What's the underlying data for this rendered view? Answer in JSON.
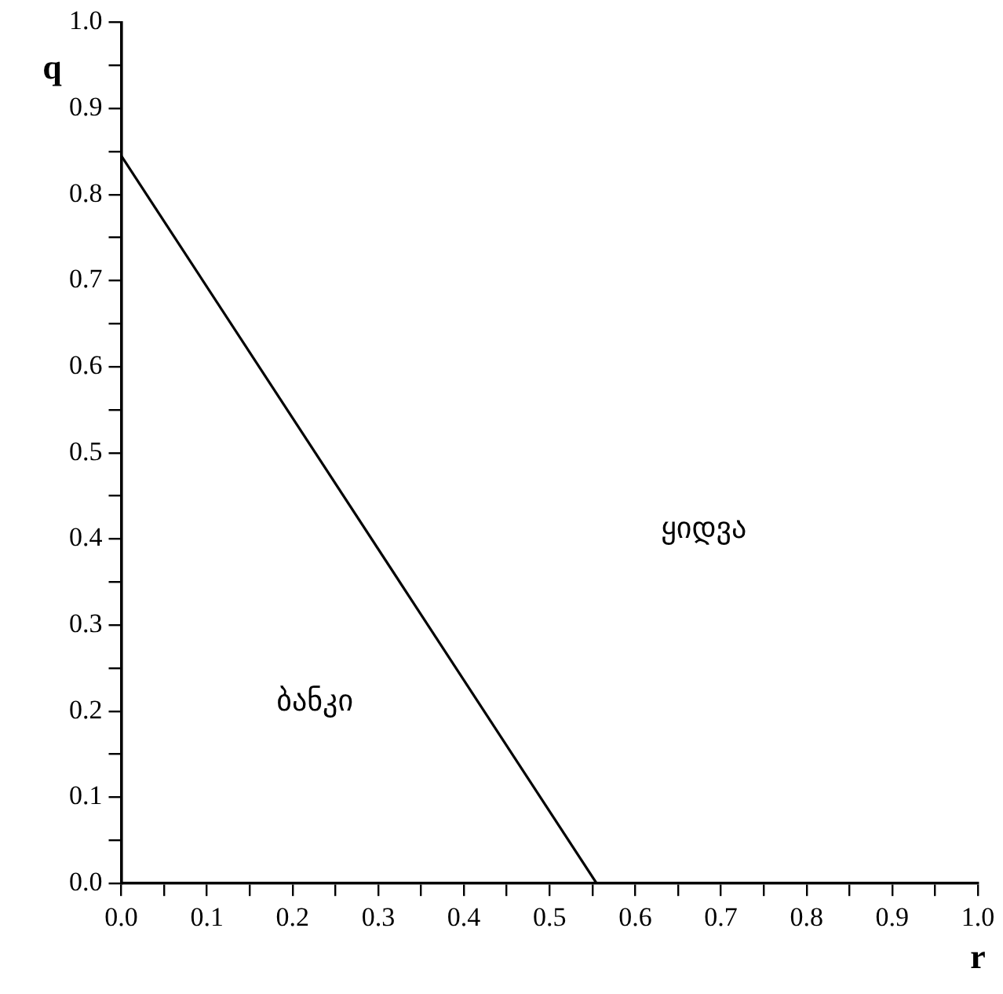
{
  "chart_data": {
    "type": "line",
    "x": [
      0,
      0.555
    ],
    "series": [
      {
        "color": "#000000",
        "values": [
          0.845,
          0
        ]
      }
    ],
    "xlabel": "r",
    "ylabel": "q",
    "xlim": [
      0,
      1
    ],
    "ylim": [
      0,
      1
    ],
    "xticks": [
      {
        "value": 0,
        "label": "0.0"
      },
      {
        "value": 0.05,
        "label": null
      },
      {
        "value": 0.1,
        "label": "0.1"
      },
      {
        "value": 0.15,
        "label": null
      },
      {
        "value": 0.2,
        "label": "0.2"
      },
      {
        "value": 0.25,
        "label": null
      },
      {
        "value": 0.3,
        "label": "0.3"
      },
      {
        "value": 0.35,
        "label": null
      },
      {
        "value": 0.4,
        "label": "0.4"
      },
      {
        "value": 0.45,
        "label": null
      },
      {
        "value": 0.5,
        "label": "0.5"
      },
      {
        "value": 0.55,
        "label": null
      },
      {
        "value": 0.6,
        "label": "0.6"
      },
      {
        "value": 0.65,
        "label": null
      },
      {
        "value": 0.7,
        "label": "0.7"
      },
      {
        "value": 0.75,
        "label": null
      },
      {
        "value": 0.8,
        "label": "0.8"
      },
      {
        "value": 0.85,
        "label": null
      },
      {
        "value": 0.9,
        "label": "0.9"
      },
      {
        "value": 0.95,
        "label": null
      },
      {
        "value": 1,
        "label": "1.0"
      }
    ],
    "yticks": [
      {
        "value": 0,
        "label": "0.0"
      },
      {
        "value": 0.05,
        "label": null
      },
      {
        "value": 0.1,
        "label": "0.1"
      },
      {
        "value": 0.15,
        "label": null
      },
      {
        "value": 0.2,
        "label": "0.2"
      },
      {
        "value": 0.25,
        "label": null
      },
      {
        "value": 0.3,
        "label": "0.3"
      },
      {
        "value": 0.35,
        "label": null
      },
      {
        "value": 0.4,
        "label": "0.4"
      },
      {
        "value": 0.45,
        "label": null
      },
      {
        "value": 0.5,
        "label": "0.5"
      },
      {
        "value": 0.55,
        "label": null
      },
      {
        "value": 0.6,
        "label": "0.6"
      },
      {
        "value": 0.65,
        "label": null
      },
      {
        "value": 0.7,
        "label": "0.7"
      },
      {
        "value": 0.75,
        "label": null
      },
      {
        "value": 0.8,
        "label": "0.8"
      },
      {
        "value": 0.85,
        "label": null
      },
      {
        "value": 0.9,
        "label": "0.9"
      },
      {
        "value": 0.95,
        "label": null
      },
      {
        "value": 1,
        "label": "1.0"
      }
    ],
    "annotations": [
      "ყიდვა",
      "ბანკი"
    ],
    "grid": false,
    "legend": false,
    "marker": "none",
    "line_style": "solid"
  }
}
